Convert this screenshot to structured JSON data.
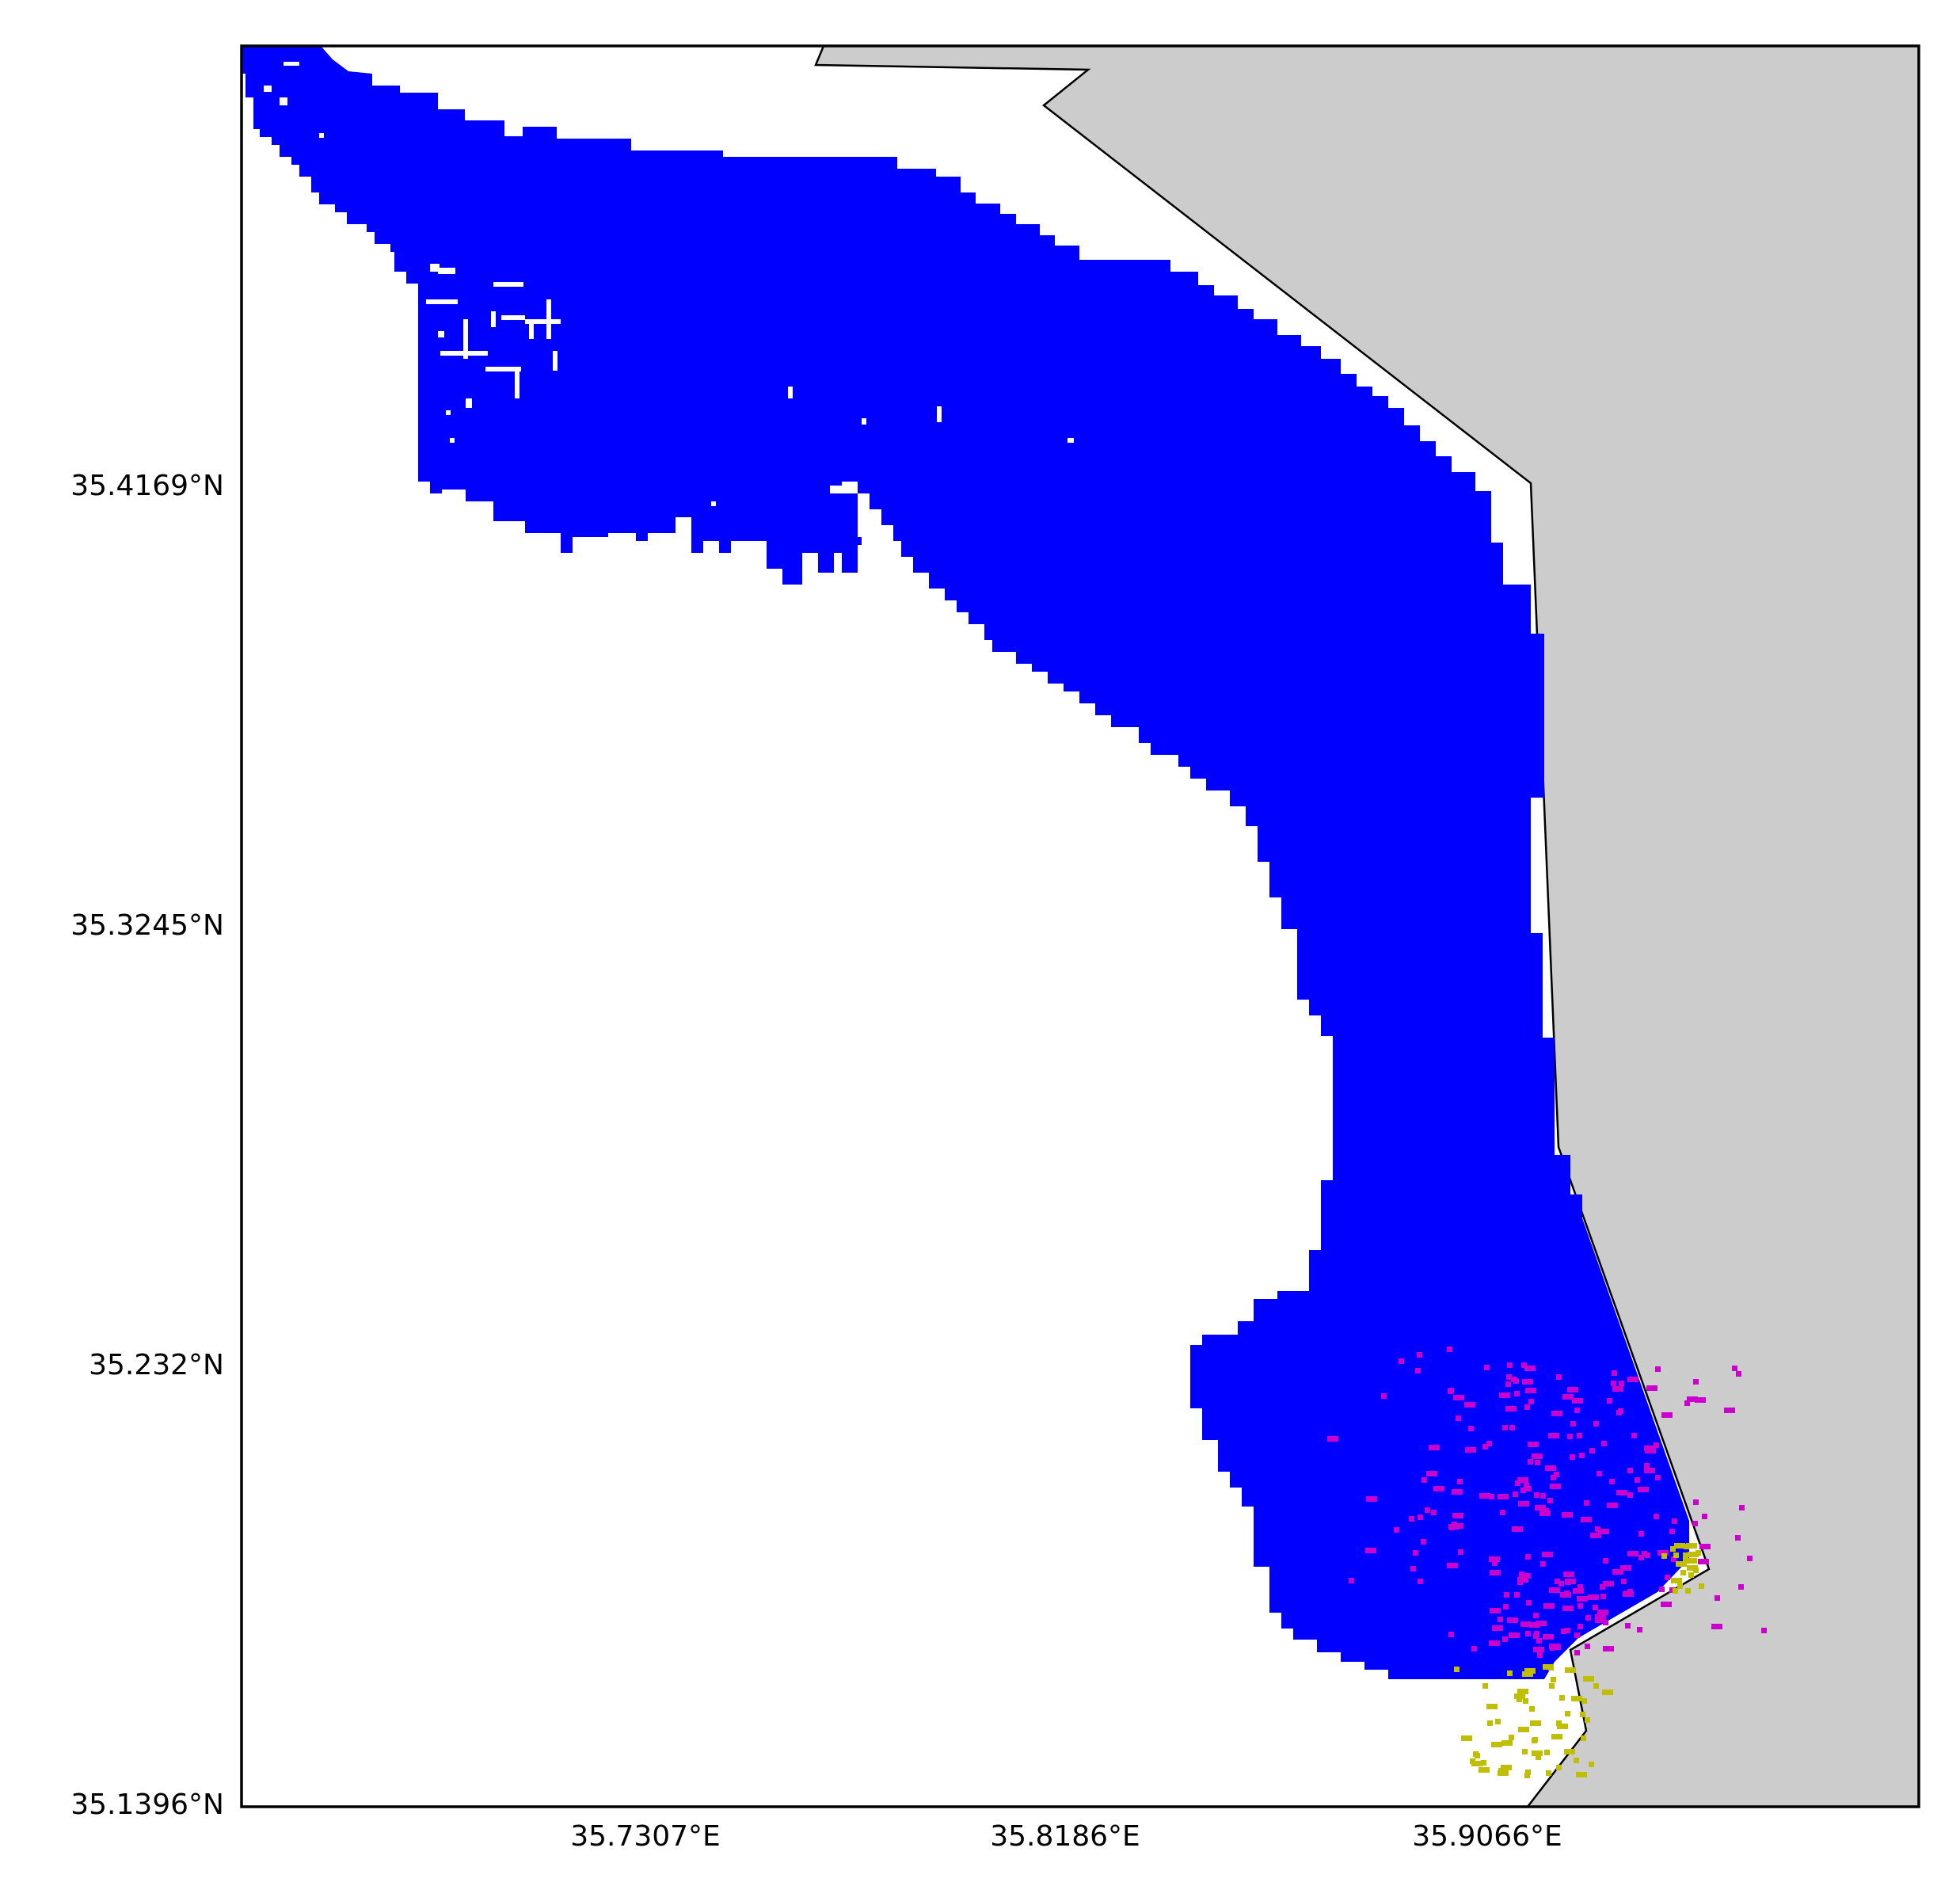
{
  "map": {
    "colors": {
      "land": "#cccccc",
      "coast_line": "#000000",
      "region_fill": "#0000ff",
      "points_magenta": "#cc00cc",
      "points_yellow": "#bfbf00",
      "background": "#ffffff"
    },
    "y_ticks": [
      "35.4169°N",
      "35.3245°N",
      "35.232°N",
      "35.1396°N"
    ],
    "x_ticks": [
      "35.7307°E",
      "35.8186°E",
      "35.9066°E"
    ]
  }
}
